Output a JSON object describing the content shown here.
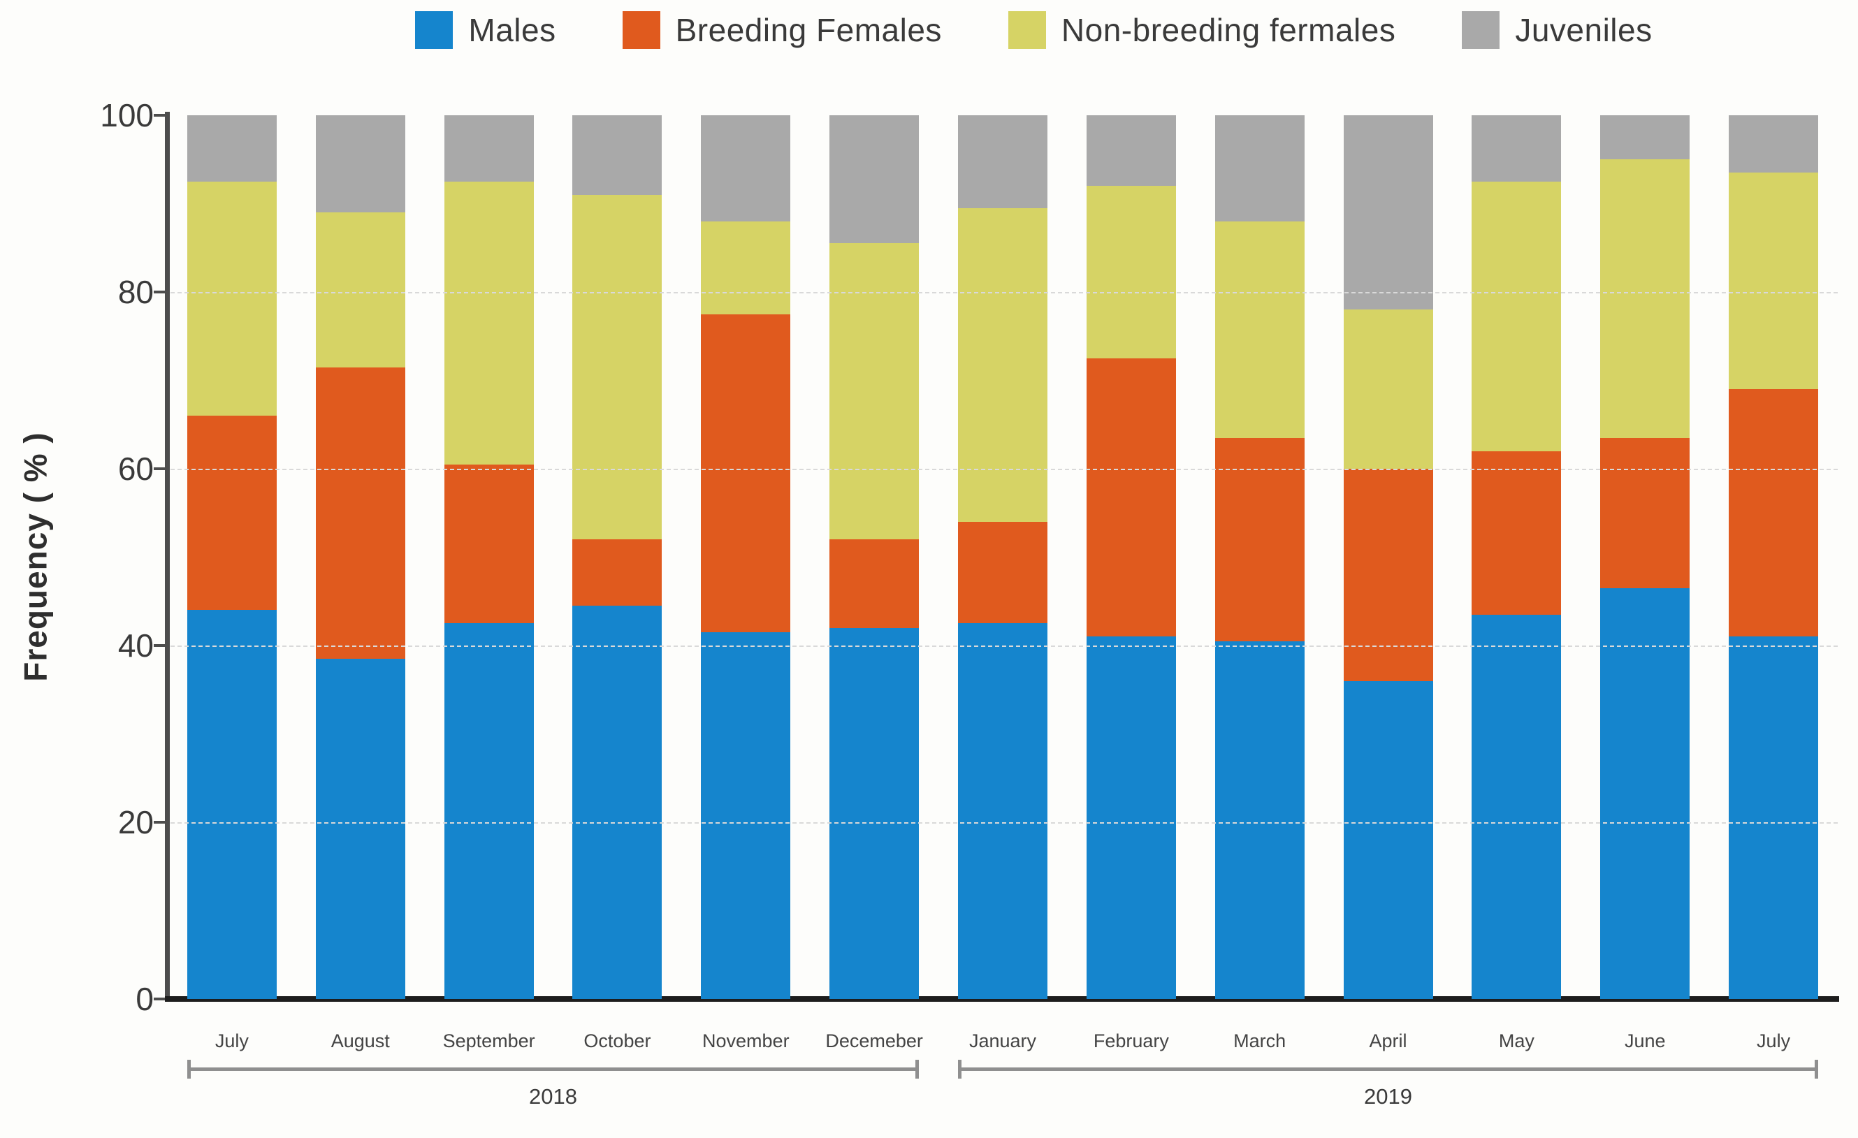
{
  "legend": {
    "items": [
      {
        "label": "Males",
        "color": "#1585cd"
      },
      {
        "label": "Breeding Females",
        "color": "#e05a1e"
      },
      {
        "label": "Non-breeding fermales",
        "color": "#d6d365"
      },
      {
        "label": "Juveniles",
        "color": "#a9a9a9"
      }
    ]
  },
  "y_axis": {
    "label": "Frequency ( % )",
    "ticks": [
      100,
      80,
      60,
      40,
      20,
      0
    ]
  },
  "x_axis": {
    "year_groups": [
      {
        "label": "2018",
        "from": 0,
        "to": 5
      },
      {
        "label": "2019",
        "from": 6,
        "to": 12
      }
    ]
  },
  "chart_data": {
    "type": "bar",
    "subtype": "stacked-percentage",
    "title": "",
    "xlabel": "",
    "ylabel": "Frequency ( % )",
    "ylim": [
      0,
      100
    ],
    "grid": true,
    "legend_position": "top",
    "categories": [
      "July",
      "August",
      "September",
      "October",
      "November",
      "Decemeber",
      "January",
      "February",
      "March",
      "April",
      "May",
      "June",
      "July"
    ],
    "category_years": [
      "2018",
      "2018",
      "2018",
      "2018",
      "2018",
      "2018",
      "2019",
      "2019",
      "2019",
      "2019",
      "2019",
      "2019",
      "2019"
    ],
    "series": [
      {
        "name": "Males",
        "color": "#1585cd",
        "values": [
          44,
          38.5,
          42.5,
          44.5,
          41.5,
          42,
          42.5,
          41,
          40.5,
          36,
          43.5,
          46.5,
          41
        ]
      },
      {
        "name": "Breeding Females",
        "color": "#e05a1e",
        "values": [
          22,
          33,
          18,
          7.5,
          36,
          10,
          11.5,
          31.5,
          23,
          24,
          18.5,
          17,
          28
        ]
      },
      {
        "name": "Non-breeding fermales",
        "color": "#d6d365",
        "values": [
          26.5,
          17.5,
          32,
          39,
          10.5,
          33.5,
          35.5,
          19.5,
          24.5,
          18,
          30.5,
          31.5,
          24.5
        ]
      },
      {
        "name": "Juveniles",
        "color": "#a9a9a9",
        "values": [
          7.5,
          11,
          7.5,
          9,
          12,
          14.5,
          10.5,
          8,
          12,
          22,
          7.5,
          5,
          6.5
        ]
      }
    ],
    "colors": {
      "grid": "#d9d9d9",
      "y_axis_line": "#4d4d4d",
      "x_axis_line": "#1d1d1d",
      "bracket": "#8f8f8f",
      "text": "#3a3a3a",
      "background": "#fdfdfb"
    }
  }
}
